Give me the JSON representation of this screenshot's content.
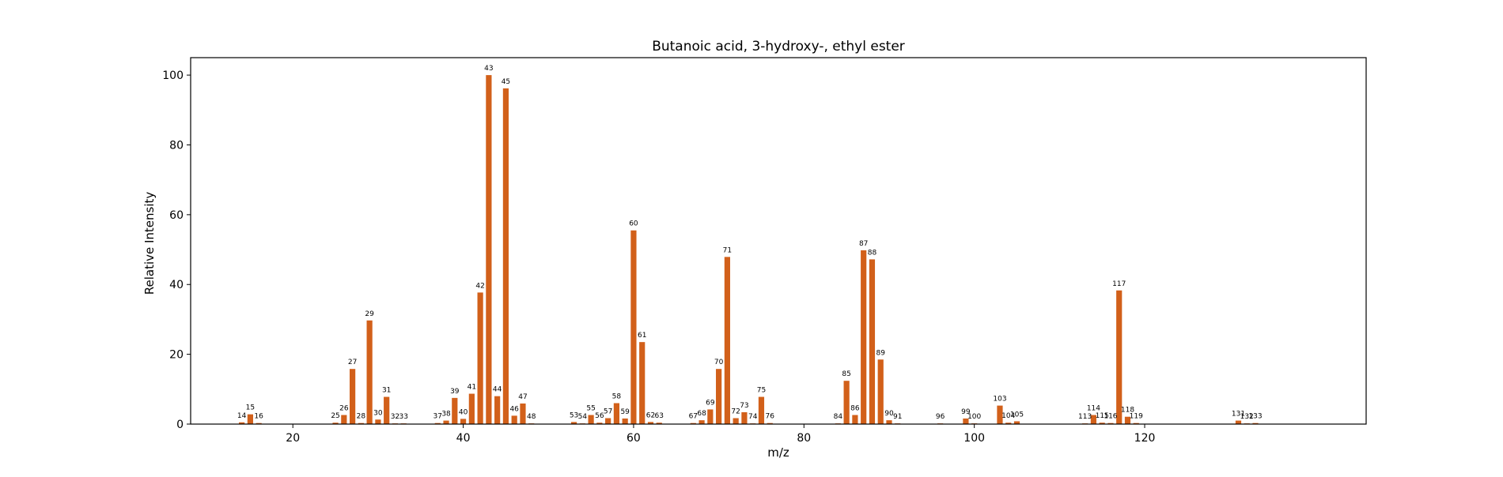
{
  "chart_data": {
    "type": "bar",
    "title": "Butanoic acid, 3-hydroxy-, ethyl ester",
    "xlabel": "m/z",
    "ylabel": "Relative Intensity",
    "xlim": [
      8,
      146
    ],
    "ylim": [
      0,
      105
    ],
    "xticks": [
      20,
      40,
      60,
      80,
      100,
      120
    ],
    "yticks": [
      0,
      20,
      40,
      60,
      80,
      100
    ],
    "grid": false,
    "bar_color": "#d2601a",
    "points": [
      {
        "mz": 14,
        "intensity": 0.5
      },
      {
        "mz": 15,
        "intensity": 2.8
      },
      {
        "mz": 16,
        "intensity": 0.3
      },
      {
        "mz": 25,
        "intensity": 0.4
      },
      {
        "mz": 26,
        "intensity": 2.6
      },
      {
        "mz": 27,
        "intensity": 15.8
      },
      {
        "mz": 28,
        "intensity": 0.3
      },
      {
        "mz": 29,
        "intensity": 29.7
      },
      {
        "mz": 30,
        "intensity": 1.3
      },
      {
        "mz": 31,
        "intensity": 7.8
      },
      {
        "mz": 32,
        "intensity": 0.2
      },
      {
        "mz": 33,
        "intensity": 0.2
      },
      {
        "mz": 37,
        "intensity": 0.3
      },
      {
        "mz": 38,
        "intensity": 1.0
      },
      {
        "mz": 39,
        "intensity": 7.5
      },
      {
        "mz": 40,
        "intensity": 1.5
      },
      {
        "mz": 41,
        "intensity": 8.7
      },
      {
        "mz": 42,
        "intensity": 37.7
      },
      {
        "mz": 43,
        "intensity": 100.0
      },
      {
        "mz": 44,
        "intensity": 8.0
      },
      {
        "mz": 45,
        "intensity": 96.2
      },
      {
        "mz": 46,
        "intensity": 2.4
      },
      {
        "mz": 47,
        "intensity": 5.9
      },
      {
        "mz": 48,
        "intensity": 0.2
      },
      {
        "mz": 53,
        "intensity": 0.6
      },
      {
        "mz": 54,
        "intensity": 0.2
      },
      {
        "mz": 55,
        "intensity": 2.6
      },
      {
        "mz": 56,
        "intensity": 0.4
      },
      {
        "mz": 57,
        "intensity": 1.7
      },
      {
        "mz": 58,
        "intensity": 6.0
      },
      {
        "mz": 59,
        "intensity": 1.6
      },
      {
        "mz": 60,
        "intensity": 55.5
      },
      {
        "mz": 61,
        "intensity": 23.5
      },
      {
        "mz": 62,
        "intensity": 0.6
      },
      {
        "mz": 63,
        "intensity": 0.4
      },
      {
        "mz": 67,
        "intensity": 0.3
      },
      {
        "mz": 68,
        "intensity": 1.1
      },
      {
        "mz": 69,
        "intensity": 4.2
      },
      {
        "mz": 70,
        "intensity": 15.8
      },
      {
        "mz": 71,
        "intensity": 47.9
      },
      {
        "mz": 72,
        "intensity": 1.7
      },
      {
        "mz": 73,
        "intensity": 3.4
      },
      {
        "mz": 74,
        "intensity": 0.2
      },
      {
        "mz": 75,
        "intensity": 7.8
      },
      {
        "mz": 76,
        "intensity": 0.3
      },
      {
        "mz": 84,
        "intensity": 0.2
      },
      {
        "mz": 85,
        "intensity": 12.4
      },
      {
        "mz": 86,
        "intensity": 2.6
      },
      {
        "mz": 87,
        "intensity": 49.8
      },
      {
        "mz": 88,
        "intensity": 47.2
      },
      {
        "mz": 89,
        "intensity": 18.5
      },
      {
        "mz": 90,
        "intensity": 1.1
      },
      {
        "mz": 91,
        "intensity": 0.2
      },
      {
        "mz": 96,
        "intensity": 0.2
      },
      {
        "mz": 99,
        "intensity": 1.6
      },
      {
        "mz": 100,
        "intensity": 0.2
      },
      {
        "mz": 103,
        "intensity": 5.3
      },
      {
        "mz": 104,
        "intensity": 0.4
      },
      {
        "mz": 105,
        "intensity": 0.8
      },
      {
        "mz": 113,
        "intensity": 0.2
      },
      {
        "mz": 114,
        "intensity": 2.6
      },
      {
        "mz": 115,
        "intensity": 0.4
      },
      {
        "mz": 116,
        "intensity": 0.3
      },
      {
        "mz": 117,
        "intensity": 38.3
      },
      {
        "mz": 118,
        "intensity": 2.1
      },
      {
        "mz": 119,
        "intensity": 0.3
      },
      {
        "mz": 131,
        "intensity": 1.0
      },
      {
        "mz": 132,
        "intensity": 0.2
      },
      {
        "mz": 133,
        "intensity": 0.3
      }
    ]
  }
}
